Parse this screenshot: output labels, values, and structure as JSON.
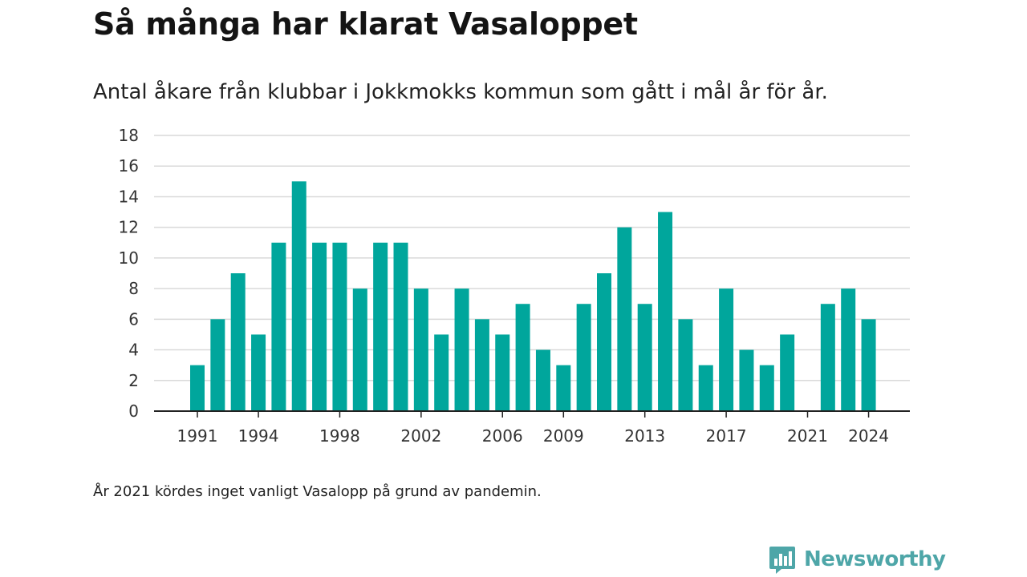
{
  "chart_data": {
    "type": "bar",
    "title": "Så många har klarat Vasaloppet",
    "subtitle": "Antal åkare från klubbar i Jokkmokks kommun som gått i mål år för år.",
    "xlabel": "",
    "ylabel": "",
    "x": [
      1991,
      1992,
      1993,
      1994,
      1995,
      1996,
      1997,
      1998,
      1999,
      2000,
      2001,
      2002,
      2003,
      2004,
      2005,
      2006,
      2007,
      2008,
      2009,
      2010,
      2011,
      2012,
      2013,
      2014,
      2015,
      2016,
      2017,
      2018,
      2019,
      2020,
      2021,
      2022,
      2023,
      2024
    ],
    "values": [
      3,
      6,
      9,
      5,
      11,
      15,
      11,
      11,
      8,
      11,
      11,
      8,
      5,
      8,
      6,
      5,
      7,
      4,
      3,
      7,
      9,
      12,
      7,
      13,
      6,
      3,
      8,
      4,
      3,
      5,
      0,
      7,
      8,
      6
    ],
    "x_tick_labels": [
      "1991",
      "1994",
      "1998",
      "2002",
      "2006",
      "2009",
      "2013",
      "2017",
      "2021",
      "2024"
    ],
    "y_ticks": [
      0,
      2,
      4,
      6,
      8,
      10,
      12,
      14,
      16,
      18
    ],
    "ylim": [
      0,
      18
    ],
    "grid": true,
    "legend": "none",
    "bar_color": "#00a69c",
    "note": "År 2021 kördes inget vanligt Vasalopp på grund av pandemin."
  },
  "brand": {
    "name": "Newsworthy",
    "icon": "bar-chart-speech-bubble-icon",
    "color": "#4ea6a8"
  }
}
